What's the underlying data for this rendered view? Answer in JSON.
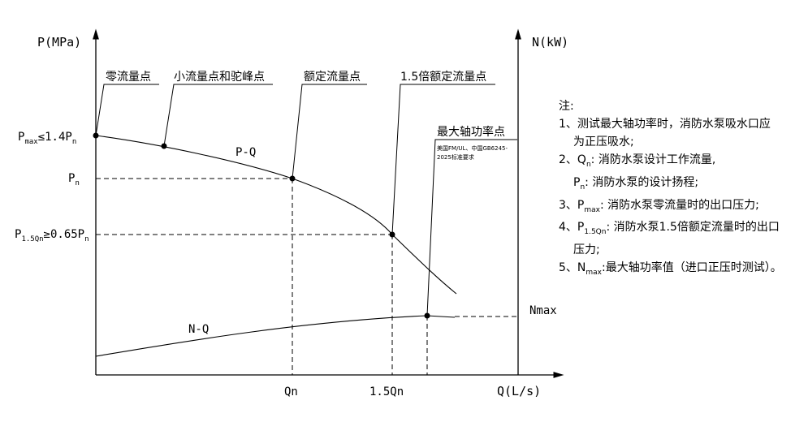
{
  "axes": {
    "p_axis_label": "P(MPa)",
    "n_axis_label": "N(kW)",
    "q_axis_label": "Q(L/s)"
  },
  "curves": {
    "pq_label": "P-Q",
    "nq_label": "N-Q"
  },
  "callouts": {
    "zero_flow": "零流量点",
    "small_flow": "小流量点和驼峰点",
    "rated_flow": "额定流量点",
    "flow_1_5": "1.5倍额定流量点",
    "max_power": "最大轴功率点",
    "max_power_note_1": "美国FM/UL、中国GB6245-",
    "max_power_note_2": "2025标准要求"
  },
  "y_labels": {
    "pmax_main": "P",
    "pmax_sub": "max",
    "pmax_rest": "≤1.4P",
    "pmax_sub2": "n",
    "pn_main": "P",
    "pn_sub": "n",
    "p15_main": "P",
    "p15_sub": "1.5Qn",
    "p15_rest": "≥0.65P",
    "p15_sub2": "n"
  },
  "x_labels": {
    "qn": "Qn",
    "q15": "1.5Qn"
  },
  "right_labels": {
    "nmax": "Nmax"
  },
  "notes": {
    "title": "注:",
    "n1_a": "1、测试最大轴功率时，消防水泵吸水口应",
    "n1_b": "为正压吸水;",
    "n2_a_pre": "2、Q",
    "n2_a_sub": "n",
    "n2_a_post": ": 消防水泵设计工作流量,",
    "n2_b_pre": "P",
    "n2_b_sub": "n",
    "n2_b_post": ": 消防水泵的设计扬程;",
    "n3_pre": "3、P",
    "n3_sub": "max",
    "n3_post": ": 消防水泵零流量时的出口压力;",
    "n4_pre": "4、P",
    "n4_sub": "1.5Qn",
    "n4_post": ": 消防水泵1.5倍额定流量时的出口",
    "n4_b": "压力;",
    "n5_pre": "5、N",
    "n5_sub": "max",
    "n5_post": ":最大轴功率值（进口正压时测试）。"
  }
}
